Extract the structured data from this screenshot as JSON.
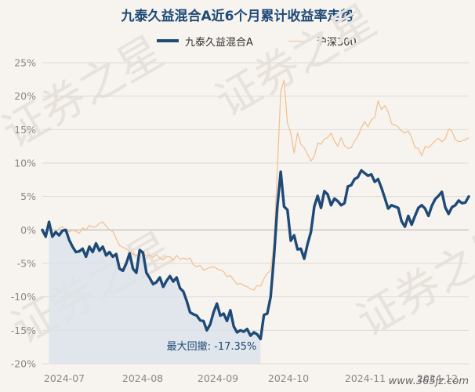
{
  "chart_data": {
    "type": "line",
    "title": "九泰久益混合A近6个月累计收益率走势",
    "xlabel": "",
    "ylabel": "",
    "ylim": [
      -20,
      25
    ],
    "y_ticks": [
      "25%",
      "20%",
      "15%",
      "10%",
      "5%",
      "0%",
      "-5%",
      "-10%",
      "-15%",
      "-20%"
    ],
    "x_ticks": [
      "2024-07",
      "2024-08",
      "2024-09",
      "2024-10",
      "2024-11",
      "2024-12"
    ],
    "grid": true,
    "legend_position": "top",
    "max_drawdown_label": "最大回撤: -17.35%",
    "max_drawdown_pct": -17.35,
    "series": [
      {
        "name": "九泰久益混合A",
        "color": "#1e4a78",
        "values": [
          0,
          -1,
          1.2,
          -1,
          -0.3,
          -0.8,
          -0.1,
          0,
          -1.5,
          -2.5,
          -3.3,
          -3.2,
          -2.8,
          -4,
          -2.5,
          -3.3,
          -2,
          -3.1,
          -2.5,
          -3.8,
          -3.3,
          -4,
          -3.6,
          -5.8,
          -6.1,
          -5,
          -3.5,
          -5.8,
          -6.4,
          -3,
          -3.4,
          -6.4,
          -7.2,
          -8.1,
          -7.8,
          -7.1,
          -8.5,
          -7.6,
          -6.9,
          -7.7,
          -7.1,
          -8.7,
          -9.2,
          -10.6,
          -12.3,
          -12.6,
          -12.8,
          -13.5,
          -13.6,
          -15,
          -14.1,
          -12.3,
          -11,
          -12.8,
          -12.5,
          -13.6,
          -12,
          -14.4,
          -15.3,
          -15,
          -15.2,
          -14.8,
          -15.8,
          -15.3,
          -15.6,
          -16.3,
          -12.7,
          -12.5,
          -10,
          -4,
          3.5,
          8.7,
          3.5,
          3,
          -1.6,
          -0.8,
          -2.9,
          -2.8,
          -4.3,
          -2.1,
          -0.3,
          3.5,
          5.1,
          3.3,
          5.8,
          5.3,
          3.7,
          4.7,
          4.3,
          3.7,
          4,
          6.5,
          6.7,
          7.6,
          7.9,
          8.9,
          8.5,
          8.1,
          8.3,
          7.2,
          7.6,
          6.3,
          4.8,
          3.2,
          3.7,
          3.5,
          3.3,
          1.3,
          0.5,
          2.1,
          0.8,
          2.1,
          3.3,
          3.7,
          3.2,
          2.1,
          3.6,
          4.6,
          5.1,
          5.7,
          3.4,
          2.4,
          3.4,
          3.7,
          4.4,
          4,
          4.1,
          5
        ]
      },
      {
        "name": "沪深300",
        "color": "#f0c090",
        "values": [
          0,
          -0.5,
          0,
          -0.8,
          -0.3,
          0.2,
          0.5,
          0,
          -0.3,
          0,
          -0.2,
          -0.5,
          0.3,
          0,
          0.7,
          0.4,
          0.5,
          1,
          1.2,
          0.6,
          0,
          -0.2,
          -1.3,
          -2.3,
          -2.6,
          -2.8,
          -3.2,
          -3.6,
          -3.8,
          -3.6,
          -3.5,
          -3.9,
          -3.8,
          -4.1,
          -3.7,
          -4.2,
          -4.5,
          -4,
          -4,
          -4.5,
          -3.8,
          -4.4,
          -4.2,
          -4.4,
          -4.2,
          -5.2,
          -5.5,
          -5.3,
          -6,
          -5.8,
          -5.6,
          -5.5,
          -5.8,
          -6,
          -6.2,
          -7,
          -6.8,
          -7.5,
          -8.1,
          -8,
          -8.3,
          -8.5,
          -8.8,
          -9,
          -8.3,
          -8.4,
          -7.3,
          -6.5,
          -6,
          -2,
          9,
          20.7,
          22.4,
          16,
          14.5,
          11.5,
          14.5,
          12.8,
          12.3,
          11.3,
          10.3,
          11,
          13,
          12.8,
          13.6,
          13.8,
          14.5,
          13.3,
          12.5,
          13.8,
          12.6,
          12.2,
          12.3,
          13.3,
          14,
          15.3,
          16.2,
          15.4,
          16.5,
          16.8,
          19.3,
          18,
          18.6,
          17.7,
          15.9,
          15.7,
          15.4,
          14.8,
          14.5,
          14.8,
          13.8,
          12.3,
          12.2,
          11.1,
          12.5,
          12.3,
          12.8,
          13.3,
          13.7,
          13.2,
          13.6,
          15.1,
          14.8,
          13.5,
          13.2,
          13.3,
          13.5,
          13.8
        ]
      }
    ]
  },
  "watermark_text": "www.365jz.com",
  "background_watermark": "证券之星"
}
